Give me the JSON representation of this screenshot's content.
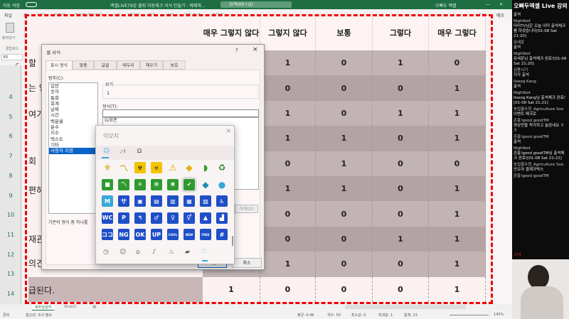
{
  "titlebar": {
    "autosave": "자동 저장",
    "title": "엑셀LIVE79강 출퇴 자동체크 서식 만들기 - 예제파...",
    "search": "검색(Alt+Q)",
    "user": "오빠두 엑셀"
  },
  "menu": [
    "파일",
    "홈",
    "삽입",
    "그리기",
    "페이지 레이아웃",
    "수식",
    "데이터",
    "검토",
    "보기",
    "개발 도구",
    "도움말"
  ],
  "menu_right": {
    "share": "공유",
    "memo": "메모"
  },
  "ribbon": {
    "paste": "붙여넣기",
    "clipboard": "클립보드"
  },
  "namebox": "E5",
  "column_letter": "C",
  "row_numbers": [
    "4",
    "5",
    "6",
    "7",
    "8",
    "9",
    "10",
    "11",
    "12",
    "13",
    "14"
  ],
  "left_fragments": [
    "할",
    "는 업",
    "여기",
    "회",
    "편하",
    "재관",
    "의견",
    "급된다."
  ],
  "table": {
    "headers": [
      "매우 그렇지 않다",
      "그렇지 않다",
      "보통",
      "그렇다",
      "매우 그렇다"
    ],
    "rows": [
      [
        "",
        "1",
        "0",
        "1",
        "0"
      ],
      [
        "",
        "0",
        "0",
        "0",
        "1"
      ],
      [
        "",
        "1",
        "0",
        "1",
        "1"
      ],
      [
        "",
        "1",
        "1",
        "0",
        "1"
      ],
      [
        "",
        "0",
        "1",
        "0",
        "0"
      ],
      [
        "",
        "1",
        "1",
        "0",
        "1"
      ],
      [
        "",
        "0",
        "0",
        "0",
        "1"
      ],
      [
        "",
        "0",
        "0",
        "1",
        "1"
      ],
      [
        "",
        "1",
        "0",
        "0",
        "1"
      ],
      [
        "1",
        "0",
        "0",
        "0",
        "1"
      ]
    ]
  },
  "dialog": {
    "title": "셀 서식",
    "help": "?",
    "close": "×",
    "tabs": [
      "표시 형식",
      "맞춤",
      "글꼴",
      "테두리",
      "채우기",
      "보호"
    ],
    "category_label": "범주(C):",
    "categories": [
      "일반",
      "숫자",
      "통화",
      "회계",
      "날짜",
      "시간",
      "백분율",
      "분수",
      "지수",
      "텍스트",
      "기타",
      "사용자 지정"
    ],
    "selected_category": "사용자 지정",
    "preview_label": "보기",
    "preview_value": "1",
    "format_label": "형식(T):",
    "format_value": "",
    "format_list_first": "G/표준",
    "delete_button": "삭제(D)",
    "description": "기존의 형식 중 하나를",
    "ok": "확인",
    "cancel": "취소"
  },
  "emoji_panel": {
    "title": "이모지",
    "close": "×",
    "tabs": [
      "☺",
      ";-)",
      "Ω"
    ],
    "grid": [
      [
        {
          "n": "fleur-de-lis-icon",
          "g": "⚜",
          "c": "none",
          "t": "#c9a000"
        },
        {
          "n": "part-alternation-mark-icon",
          "g": "〽",
          "c": "none",
          "t": "#c9a000"
        },
        {
          "n": "radioactive-icon",
          "g": "☢",
          "c": "#f2c400",
          "t": "#222"
        },
        {
          "n": "biohazard-icon",
          "g": "☣",
          "c": "#f2c400",
          "t": "#222"
        },
        {
          "n": "warning-icon",
          "g": "⚠",
          "c": "none",
          "t": "#d8a800"
        },
        {
          "n": "trident-icon",
          "g": "◆",
          "c": "none",
          "t": "#e0b400"
        },
        {
          "n": "beginner-icon",
          "g": "◗",
          "c": "none",
          "t": "#3a9b2a"
        },
        {
          "n": "recycle-icon",
          "g": "♻",
          "c": "none",
          "t": "#2a8a2a"
        }
      ],
      [
        {
          "n": "green-square-icon",
          "g": "■",
          "c": "#2f9b2f",
          "t": "#fff"
        },
        {
          "n": "green-mark-icon",
          "g": "〽",
          "c": "#2f9b2f",
          "t": "#fff"
        },
        {
          "n": "eight-spoked-asterisk-icon",
          "g": "✳",
          "c": "#2f9b2f",
          "t": "#fff"
        },
        {
          "n": "sparkle-icon",
          "g": "❇",
          "c": "#2f9b2f",
          "t": "#fff"
        },
        {
          "n": "cross-mark-button-icon",
          "g": "✖",
          "c": "#2f9b2f",
          "t": "#fff"
        },
        {
          "n": "check-mark-button-icon",
          "g": "✔",
          "c": "#2f9b2f",
          "t": "#fff"
        },
        {
          "n": "diamond-dot-icon",
          "g": "◆",
          "c": "none",
          "t": "#1c8ab0"
        },
        {
          "n": "globe-icon",
          "g": "●",
          "c": "none",
          "t": "#39a7d8"
        }
      ],
      [
        {
          "n": "circled-m-icon",
          "g": "M",
          "c": "#39a7d8",
          "t": "#fff"
        },
        {
          "n": "sa-icon",
          "g": "サ",
          "c": "#1f4fc8",
          "t": "#fff"
        },
        {
          "n": "passport-control-icon",
          "g": "▣",
          "c": "#1f4fc8",
          "t": "#fff"
        },
        {
          "n": "customs-icon",
          "g": "▤",
          "c": "#1f4fc8",
          "t": "#fff"
        },
        {
          "n": "baggage-claim-icon",
          "g": "▥",
          "c": "#1f4fc8",
          "t": "#fff"
        },
        {
          "n": "left-luggage-icon",
          "g": "▦",
          "c": "#1f4fc8",
          "t": "#fff"
        },
        {
          "n": "atm-icon",
          "g": "▧",
          "c": "#1f4fc8",
          "t": "#fff"
        },
        {
          "n": "wheelchair-icon",
          "g": "♿",
          "c": "#1f4fc8",
          "t": "#fff"
        }
      ],
      [
        {
          "n": "water-closet-icon",
          "g": "WC",
          "c": "#1f4fc8",
          "t": "#fff"
        },
        {
          "n": "parking-icon",
          "g": "P",
          "c": "#1f4fc8",
          "t": "#fff"
        },
        {
          "n": "potable-water-icon",
          "g": "↰",
          "c": "#1f4fc8",
          "t": "#fff"
        },
        {
          "n": "mens-room-icon",
          "g": "♂",
          "c": "#1f4fc8",
          "t": "#fff"
        },
        {
          "n": "womens-room-icon",
          "g": "♀",
          "c": "#1f4fc8",
          "t": "#fff"
        },
        {
          "n": "restroom-icon",
          "g": "⚥",
          "c": "#1f4fc8",
          "t": "#fff"
        },
        {
          "n": "baby-symbol-icon",
          "g": "▲",
          "c": "#1f4fc8",
          "t": "#fff"
        },
        {
          "n": "signal-bars-icon",
          "g": "▟",
          "c": "#1f4fc8",
          "t": "#fff"
        }
      ],
      [
        {
          "n": "koko-icon",
          "g": "ココ",
          "c": "#1f4fc8",
          "t": "#fff"
        },
        {
          "n": "ng-button-icon",
          "g": "NG",
          "c": "#1f4fc8",
          "t": "#fff"
        },
        {
          "n": "ok-button-icon",
          "g": "OK",
          "c": "#1f4fc8",
          "t": "#fff"
        },
        {
          "n": "up-button-icon",
          "g": "UP",
          "c": "#1f4fc8",
          "t": "#fff"
        },
        {
          "n": "cool-button-icon",
          "g": "COOL",
          "c": "#1f4fc8",
          "t": "#fff"
        },
        {
          "n": "new-button-icon",
          "g": "NEW",
          "c": "#1f4fc8",
          "t": "#fff"
        },
        {
          "n": "free-button-icon",
          "g": "FREE",
          "c": "#1f4fc8",
          "t": "#fff"
        },
        {
          "n": "hash-key-icon",
          "g": "#",
          "c": "#1f4fc8",
          "t": "#fff"
        }
      ]
    ],
    "categories": [
      {
        "n": "recent-clock-icon",
        "g": "◷"
      },
      {
        "n": "smiley-icon",
        "g": "☺"
      },
      {
        "n": "people-icon",
        "g": "⌂"
      },
      {
        "n": "celebration-icon",
        "g": "♪"
      },
      {
        "n": "food-icon",
        "g": "♨"
      },
      {
        "n": "travel-icon",
        "g": "▰"
      },
      {
        "n": "symbols-heart-icon",
        "g": "♡"
      }
    ]
  },
  "chat": {
    "title": "오빠두엑셀 Live 강의",
    "messages": [
      {
        "author": "",
        "text": "출석"
      },
      {
        "author": "Nightbot",
        "text": "미미TV님은 오늘 이미 출석체크를 하셨습니다[01-08 Sat 21:20]"
      },
      {
        "author": "유세운",
        "text": "출석"
      },
      {
        "author": "Nightbot",
        "text": "유세운님 출석체크 완료![01-08 Sat 21:20]"
      },
      {
        "author": "김용시기",
        "text": "지각 출석"
      },
      {
        "author": "Ilseog Kang",
        "text": "출석"
      },
      {
        "author": "Nightbot",
        "text": "Ilseog Kang님 출석체크 완료![01-08 Sat 21:21]"
      },
      {
        "author": "농업꿀수정_Agriculture Soo",
        "text": "이벤트 매크로"
      },
      {
        "author": "존홍!good goodTM",
        "text": "영상만을 착각하고 놀았네요 ㅎㅎ"
      },
      {
        "author": "존홍!good goodTM",
        "text": "출석"
      },
      {
        "author": "Nightbot",
        "text": "존홍!good goodTM님 출석체크 완료![01-08 Sat 21:22]"
      },
      {
        "author": "농업꿀수정_Agriculture Soo",
        "text": "안오자 결제크박스"
      },
      {
        "author": "존홍!good goodTM",
        "text": ""
      }
    ],
    "viewers": "174"
  },
  "sheet_tabs": [
    "제주관광객",
    "Sheet2"
  ],
  "status": {
    "ready": "준비",
    "accessibility": "접근성: 조사 필요",
    "average": "평균: 0.46",
    "count": "개수: 50",
    "min": "최소값: 0",
    "max": "최대값: 1",
    "sum": "합계: 23",
    "zoom": "145%"
  }
}
